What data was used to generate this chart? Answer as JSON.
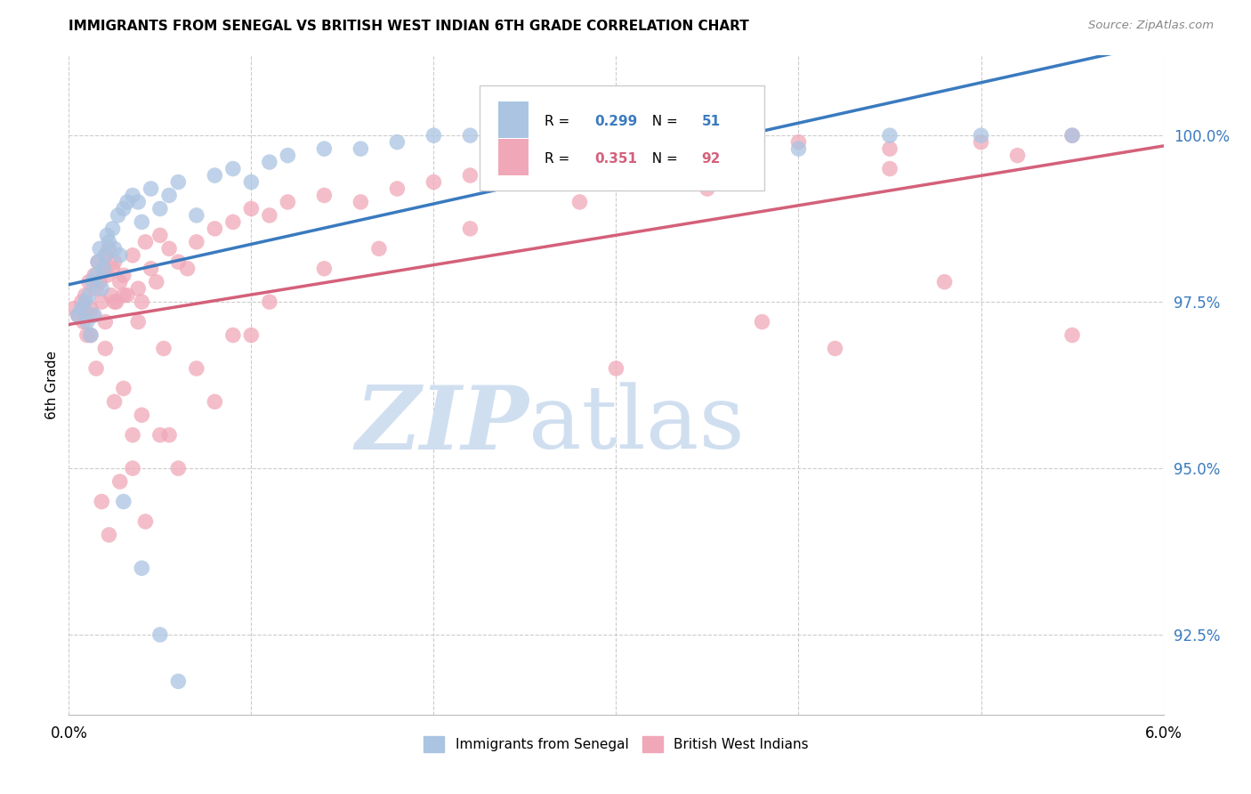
{
  "title": "IMMIGRANTS FROM SENEGAL VS BRITISH WEST INDIAN 6TH GRADE CORRELATION CHART",
  "source": "Source: ZipAtlas.com",
  "ylabel": "6th Grade",
  "yaxis_ticks": [
    92.5,
    95.0,
    97.5,
    100.0
  ],
  "yaxis_labels": [
    "92.5%",
    "95.0%",
    "97.5%",
    "100.0%"
  ],
  "xmin": 0.0,
  "xmax": 6.0,
  "ymin": 91.3,
  "ymax": 101.2,
  "r_senegal": 0.299,
  "n_senegal": 51,
  "r_bwi": 0.351,
  "n_bwi": 92,
  "color_senegal": "#aac4e2",
  "color_bwi": "#f0a8b8",
  "line_color_senegal": "#3a7abf",
  "line_color_bwi": "#d4607a",
  "watermark_zip": "ZIP",
  "watermark_atlas": "atlas",
  "watermark_color": "#d0dff0",
  "senegal_x": [
    0.05,
    0.07,
    0.09,
    0.1,
    0.11,
    0.12,
    0.13,
    0.14,
    0.15,
    0.16,
    0.17,
    0.18,
    0.19,
    0.2,
    0.21,
    0.22,
    0.24,
    0.25,
    0.27,
    0.28,
    0.3,
    0.32,
    0.35,
    0.38,
    0.4,
    0.45,
    0.5,
    0.55,
    0.6,
    0.7,
    0.8,
    0.9,
    1.0,
    1.1,
    1.2,
    1.4,
    1.6,
    1.8,
    2.0,
    2.2,
    2.5,
    3.0,
    3.5,
    4.0,
    4.5,
    5.0,
    5.5,
    0.3,
    0.4,
    0.5,
    0.6
  ],
  "senegal_y": [
    97.3,
    97.4,
    97.5,
    97.2,
    97.6,
    97.0,
    97.8,
    97.3,
    97.9,
    98.1,
    98.3,
    97.7,
    98.0,
    98.2,
    98.5,
    98.4,
    98.6,
    98.3,
    98.8,
    98.2,
    98.9,
    99.0,
    99.1,
    99.0,
    98.7,
    99.2,
    98.9,
    99.1,
    99.3,
    98.8,
    99.4,
    99.5,
    99.3,
    99.6,
    99.7,
    99.8,
    99.8,
    99.9,
    100.0,
    100.0,
    99.9,
    100.0,
    100.0,
    99.8,
    100.0,
    100.0,
    100.0,
    94.5,
    93.5,
    92.5,
    91.8
  ],
  "bwi_x": [
    0.03,
    0.05,
    0.07,
    0.08,
    0.09,
    0.1,
    0.11,
    0.12,
    0.13,
    0.14,
    0.15,
    0.16,
    0.17,
    0.18,
    0.19,
    0.2,
    0.21,
    0.22,
    0.23,
    0.24,
    0.25,
    0.26,
    0.28,
    0.3,
    0.32,
    0.35,
    0.38,
    0.4,
    0.42,
    0.45,
    0.48,
    0.5,
    0.55,
    0.6,
    0.65,
    0.7,
    0.8,
    0.9,
    1.0,
    1.1,
    1.2,
    1.4,
    1.6,
    1.8,
    2.0,
    2.2,
    2.5,
    2.8,
    3.0,
    3.5,
    4.0,
    4.5,
    5.0,
    5.5,
    0.15,
    0.2,
    0.25,
    0.3,
    0.35,
    0.4,
    0.5,
    0.6,
    0.8,
    1.0,
    0.18,
    0.22,
    0.28,
    0.35,
    0.42,
    0.55,
    0.7,
    0.9,
    1.1,
    1.4,
    1.7,
    2.2,
    2.8,
    3.5,
    4.5,
    5.2,
    0.08,
    0.12,
    0.2,
    0.3,
    3.0,
    3.8,
    4.2,
    4.8,
    5.5,
    0.25,
    0.38,
    0.52
  ],
  "bwi_y": [
    97.4,
    97.3,
    97.5,
    97.2,
    97.6,
    97.0,
    97.8,
    97.4,
    97.3,
    97.9,
    97.7,
    98.1,
    97.8,
    97.5,
    98.0,
    98.2,
    97.9,
    98.3,
    97.6,
    98.0,
    98.1,
    97.5,
    97.8,
    97.9,
    97.6,
    98.2,
    97.7,
    97.5,
    98.4,
    98.0,
    97.8,
    98.5,
    98.3,
    98.1,
    98.0,
    98.4,
    98.6,
    98.7,
    98.9,
    98.8,
    99.0,
    99.1,
    99.0,
    99.2,
    99.3,
    99.4,
    99.5,
    99.7,
    99.7,
    99.8,
    99.9,
    99.8,
    99.9,
    100.0,
    96.5,
    96.8,
    96.0,
    96.2,
    95.5,
    95.8,
    95.5,
    95.0,
    96.0,
    97.0,
    94.5,
    94.0,
    94.8,
    95.0,
    94.2,
    95.5,
    96.5,
    97.0,
    97.5,
    98.0,
    98.3,
    98.6,
    99.0,
    99.2,
    99.5,
    99.7,
    97.4,
    97.0,
    97.2,
    97.6,
    96.5,
    97.2,
    96.8,
    97.8,
    97.0,
    97.5,
    97.2,
    96.8
  ]
}
